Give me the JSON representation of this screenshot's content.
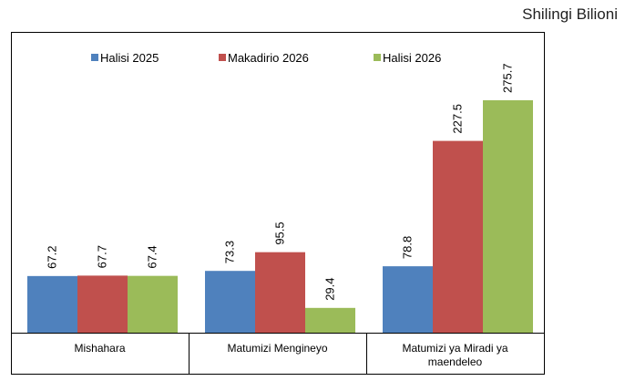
{
  "chart_data": {
    "type": "bar",
    "unit": "Shilingi Bilioni",
    "categories": [
      "Mishahara",
      "Matumizi Mengineyo",
      "Matumizi ya Miradi ya maendeleo"
    ],
    "series": [
      {
        "name": "Halisi 2025",
        "color": "#4f81bd",
        "values": [
          67.2,
          73.3,
          78.8
        ]
      },
      {
        "name": "Makadirio 2026",
        "color": "#c0504d",
        "values": [
          67.7,
          95.5,
          227.5
        ]
      },
      {
        "name": "Halisi 2026",
        "color": "#9bbb59",
        "values": [
          67.4,
          29.4,
          275.7
        ]
      }
    ]
  }
}
